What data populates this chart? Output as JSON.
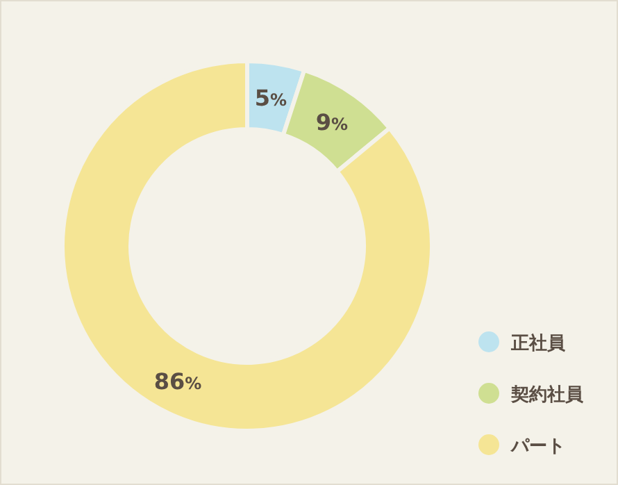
{
  "chart_data": {
    "type": "donut",
    "categories": [
      "正社員",
      "契約社員",
      "パート"
    ],
    "values": [
      5,
      9,
      86
    ],
    "value_labels": [
      "5%",
      "9%",
      "86%"
    ],
    "colors": [
      "#bde3ef",
      "#cfdf92",
      "#f5e595"
    ],
    "legend": "bottom right"
  }
}
